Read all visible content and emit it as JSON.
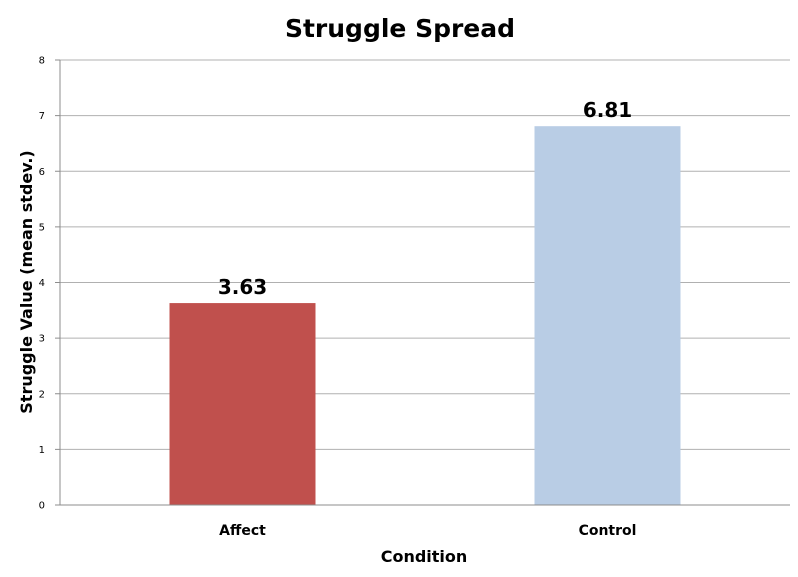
{
  "chart_data": {
    "type": "bar",
    "title": "Struggle Spread",
    "xlabel": "Condition",
    "ylabel": "Struggle Value (mean stdev.)",
    "categories": [
      "Affect",
      "Control"
    ],
    "values": [
      3.63,
      6.81
    ],
    "data_labels": [
      "3.63",
      "6.81"
    ],
    "bar_colors": [
      "#c0504d",
      "#b9cde5"
    ],
    "ylim": [
      0,
      8
    ],
    "yticks": [
      "0",
      "1",
      "2",
      "3",
      "4",
      "5",
      "6",
      "7",
      "8"
    ],
    "grid": true,
    "legend": "none"
  }
}
